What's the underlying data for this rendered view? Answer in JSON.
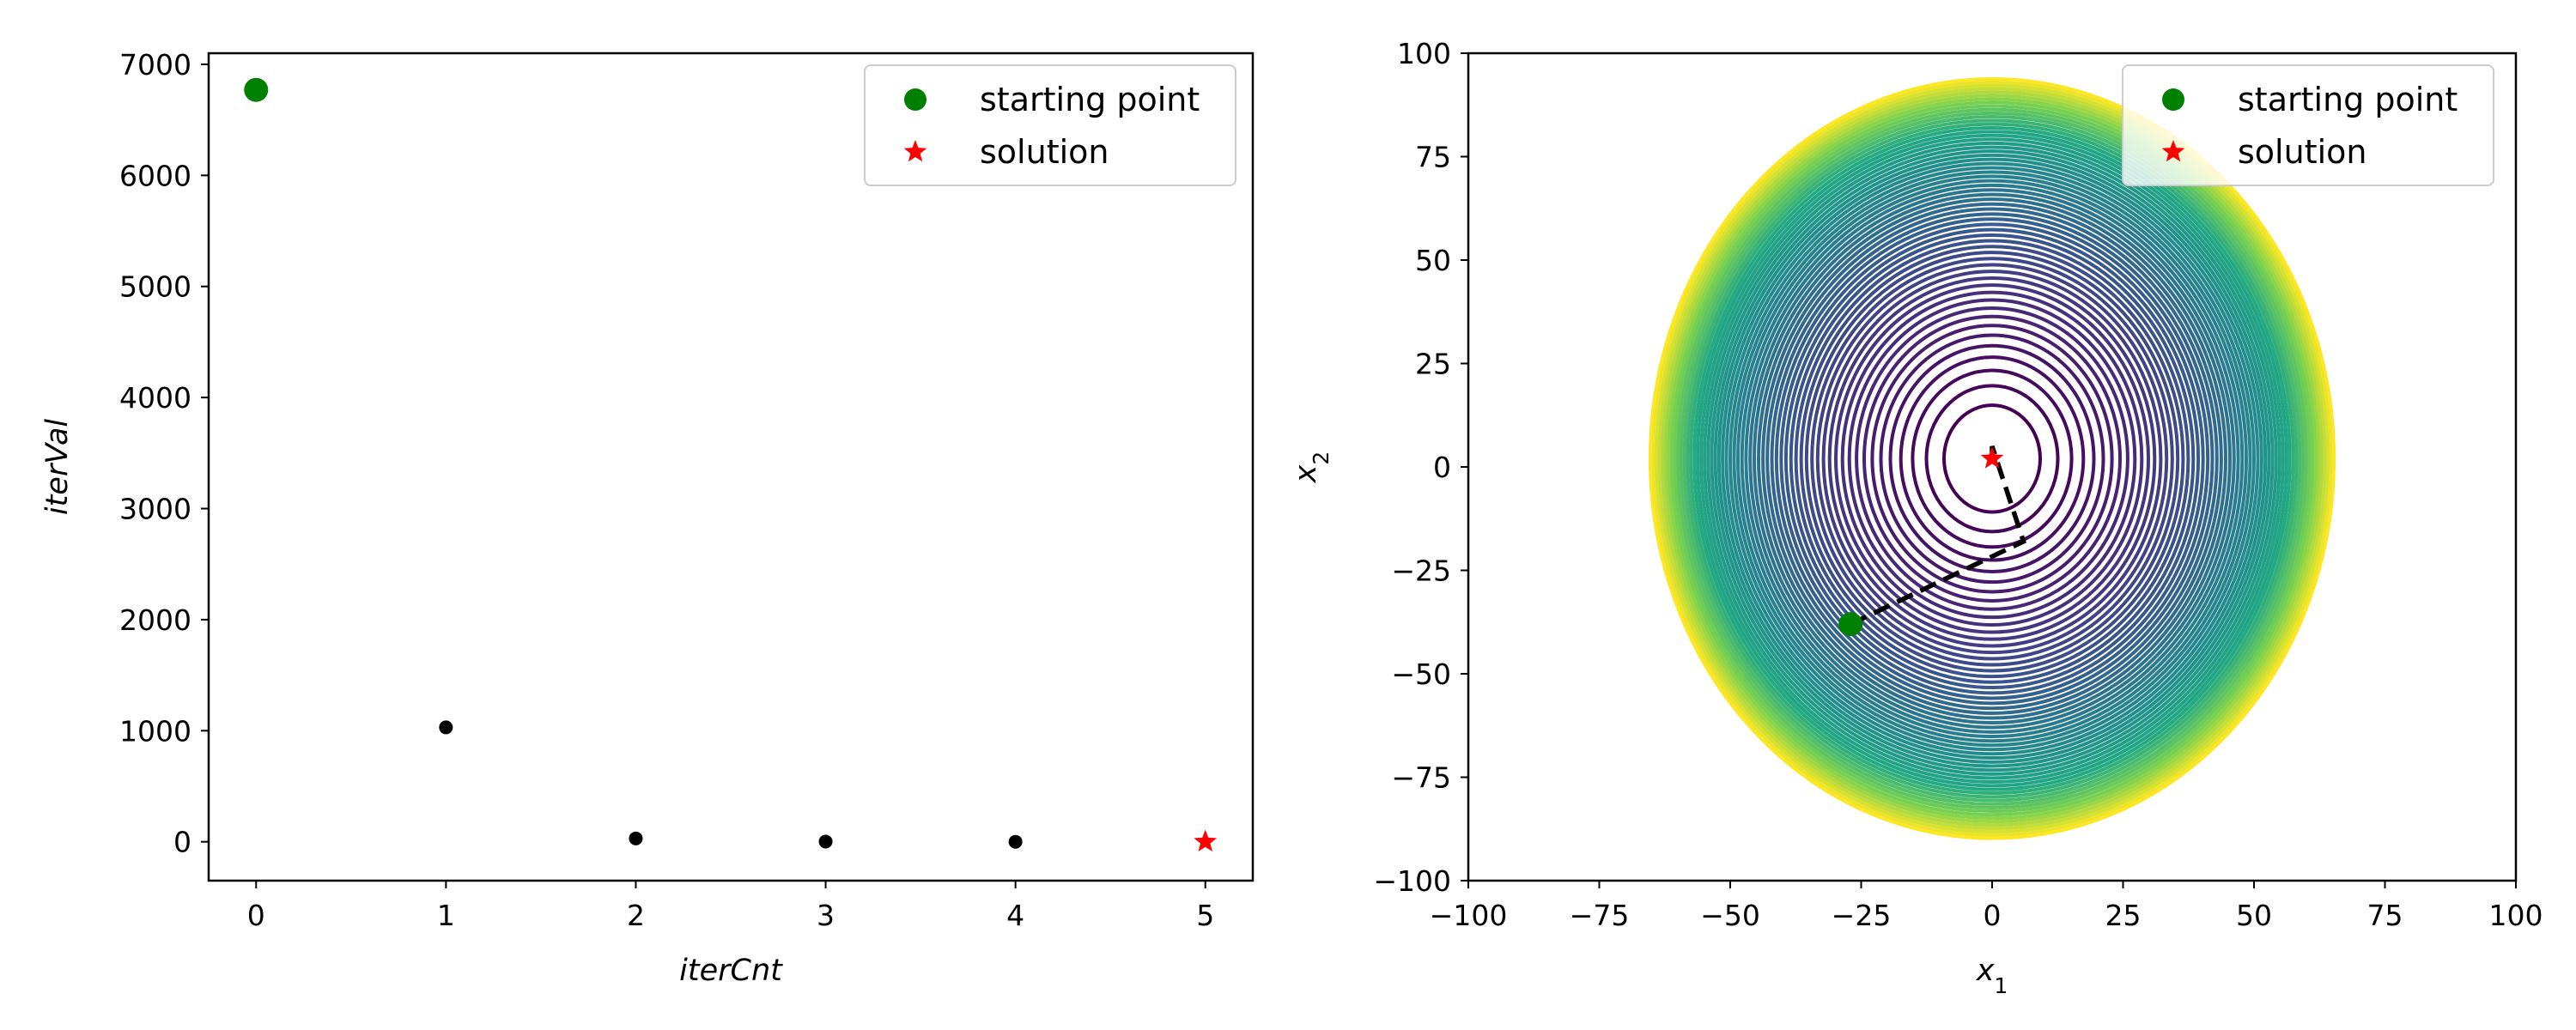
{
  "colors": {
    "start": "#008000",
    "solution": "#ff0000",
    "points": "#000000",
    "path": "#000000"
  },
  "chart_data": [
    {
      "type": "scatter",
      "xlabel": "iterCnt",
      "ylabel": "iterVal",
      "xlim": [
        -0.25,
        5.25
      ],
      "ylim": [
        -350,
        7100
      ],
      "xticks": [
        0,
        1,
        2,
        3,
        4,
        5
      ],
      "yticks": [
        0,
        1000,
        2000,
        3000,
        4000,
        5000,
        6000,
        7000
      ],
      "x": [
        0,
        1,
        2,
        3,
        4,
        5
      ],
      "y": [
        6770,
        1030,
        30,
        2,
        0,
        0
      ],
      "legend": [
        "starting point",
        "solution"
      ],
      "legend_position": "top-right",
      "grid": false
    },
    {
      "type": "contour",
      "xlabel": "x1",
      "ylabel": "x2",
      "xlim": [
        -100,
        100
      ],
      "ylim": [
        -100,
        100
      ],
      "xticks": [
        -100,
        -75,
        -50,
        -25,
        0,
        25,
        50,
        75,
        100
      ],
      "yticks": [
        -100,
        -75,
        -50,
        -25,
        0,
        25,
        50,
        75,
        100
      ],
      "colormap": "viridis",
      "center": [
        0,
        2
      ],
      "path": [
        [
          -27,
          -38
        ],
        [
          6,
          -18
        ],
        [
          0,
          5
        ],
        [
          0,
          2
        ]
      ],
      "start": [
        -27,
        -38
      ],
      "solution": [
        0,
        2
      ],
      "legend": [
        "starting point",
        "solution"
      ],
      "legend_position": "top-right",
      "grid": false
    }
  ]
}
